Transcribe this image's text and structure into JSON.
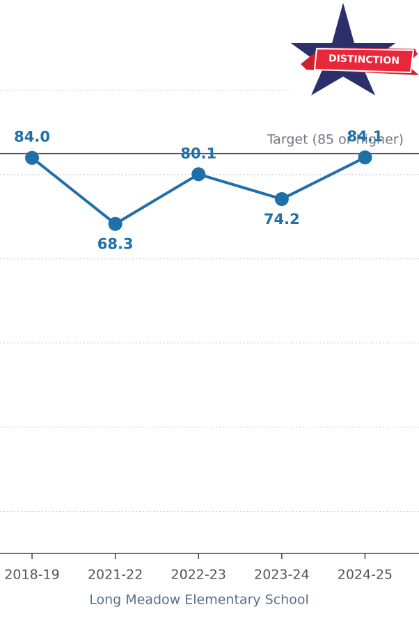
{
  "chart_data": {
    "type": "line",
    "categories": [
      "2018-19",
      "2021-22",
      "2022-23",
      "2023-24",
      "2024-25"
    ],
    "series": [
      {
        "name": "Long Meadow Elementary School",
        "color": "#1f6fa8",
        "values": [
          84.0,
          68.3,
          80.1,
          74.2,
          84.1
        ],
        "value_labels": [
          "84.0",
          "68.3",
          "80.1",
          "74.2",
          "84.1"
        ]
      }
    ],
    "xlabel": "Long Meadow Elementary School",
    "ylim": [
      -10,
      121.5
    ],
    "yticks": [
      0,
      20,
      40,
      60,
      80,
      100
    ],
    "grid": true,
    "target": {
      "value": 85,
      "label": "Target (85 or higher)"
    },
    "badge": "DISTINCTION"
  }
}
